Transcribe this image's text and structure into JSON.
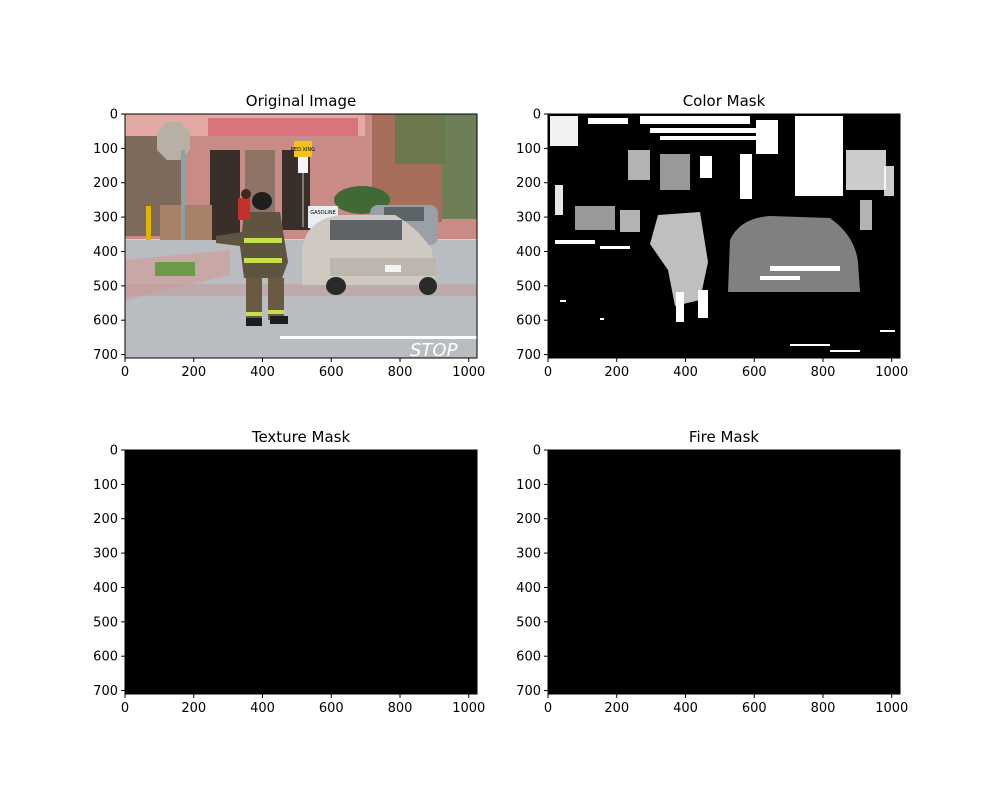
{
  "figure": {
    "panels": [
      {
        "title": "Original Image",
        "kind": "photo",
        "scene_description": "",
        "xticks": [
          0,
          200,
          400,
          600,
          800,
          1000
        ],
        "yticks": [
          0,
          100,
          200,
          300,
          400,
          500,
          600,
          700
        ]
      },
      {
        "title": "Color Mask",
        "kind": "binary-mask",
        "xticks": [
          0,
          200,
          400,
          600,
          800,
          1000
        ],
        "yticks": [
          0,
          100,
          200,
          300,
          400,
          500,
          600,
          700
        ]
      },
      {
        "title": "Texture Mask",
        "kind": "empty-mask",
        "xticks": [
          0,
          200,
          400,
          600,
          800,
          1000
        ],
        "yticks": [
          0,
          100,
          200,
          300,
          400,
          500,
          600,
          700
        ]
      },
      {
        "title": "Fire Mask",
        "kind": "empty-mask",
        "xticks": [
          0,
          200,
          400,
          600,
          800,
          1000
        ],
        "yticks": [
          0,
          100,
          200,
          300,
          400,
          500,
          600,
          700
        ]
      }
    ],
    "photo_sign_text": {
      "ped_xing": "PED XING",
      "gasoline": "GASOLINE",
      "road": "STOP"
    }
  },
  "chart_data": [
    {
      "type": "heatmap",
      "title": "Original Image",
      "image_width": 1024,
      "image_height": 710,
      "xlim": [
        0,
        1024
      ],
      "ylim": [
        710,
        0
      ],
      "xticks": [
        0,
        200,
        400,
        600,
        800,
        1000
      ],
      "yticks": [
        0,
        100,
        200,
        300,
        400,
        500,
        600,
        700
      ]
    },
    {
      "type": "heatmap",
      "title": "Color Mask",
      "image_width": 1024,
      "image_height": 710,
      "xlim": [
        0,
        1024
      ],
      "ylim": [
        710,
        0
      ],
      "xticks": [
        0,
        200,
        400,
        600,
        800,
        1000
      ],
      "yticks": [
        0,
        100,
        200,
        300,
        400,
        500,
        600,
        700
      ]
    },
    {
      "type": "heatmap",
      "title": "Texture Mask",
      "image_width": 1024,
      "image_height": 710,
      "xlim": [
        0,
        1024
      ],
      "ylim": [
        710,
        0
      ],
      "xticks": [
        0,
        200,
        400,
        600,
        800,
        1000
      ],
      "yticks": [
        0,
        100,
        200,
        300,
        400,
        500,
        600,
        700
      ],
      "mask_fraction": 0
    },
    {
      "type": "heatmap",
      "title": "Fire Mask",
      "image_width": 1024,
      "image_height": 710,
      "xlim": [
        0,
        1024
      ],
      "ylim": [
        710,
        0
      ],
      "xticks": [
        0,
        200,
        400,
        600,
        800,
        1000
      ],
      "yticks": [
        0,
        100,
        200,
        300,
        400,
        500,
        600,
        700
      ],
      "mask_fraction": 0
    }
  ]
}
